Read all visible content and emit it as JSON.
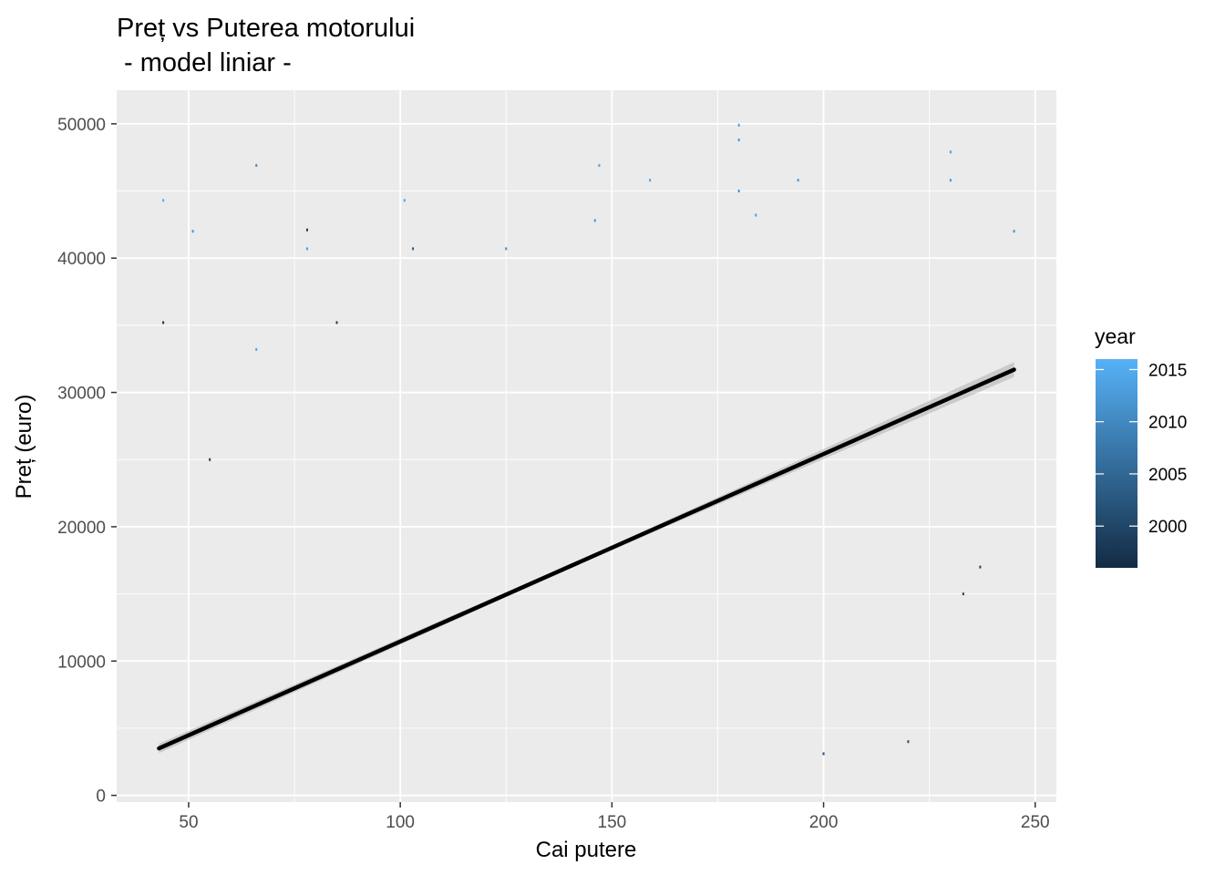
{
  "chart_data": {
    "type": "scatter",
    "title": "Preț vs Puterea motorului",
    "subtitle": " - model liniar -",
    "xlabel": "Cai putere",
    "ylabel": "Preț (euro)",
    "xlim": [
      33,
      255
    ],
    "ylim": [
      -500,
      52500
    ],
    "x_ticks": [
      50,
      100,
      150,
      200,
      250
    ],
    "y_ticks": [
      0,
      10000,
      20000,
      30000,
      40000,
      50000
    ],
    "grid": true,
    "legend": {
      "title": "year",
      "placement": "right",
      "type": "colorbar",
      "ticks": [
        2000,
        2005,
        2010,
        2015
      ],
      "range": [
        1996,
        2016
      ],
      "low_color": "#132b43",
      "high_color": "#56b1f7"
    },
    "series": [
      {
        "type": "line",
        "x": [
          43,
          245
        ],
        "y": [
          3500,
          31700
        ],
        "color": "#000000",
        "confidence_band": [
          {
            "x": 43,
            "lower": 3150,
            "upper": 3850
          },
          {
            "x": 144,
            "lower": 17450,
            "upper": 17750
          },
          {
            "x": 245,
            "lower": 31150,
            "upper": 32250
          }
        ]
      },
      {
        "type": "scatter",
        "points": [
          {
            "x": 44,
            "y": 44300,
            "year": 2015
          },
          {
            "x": 44,
            "y": 35200,
            "year": 1998
          },
          {
            "x": 51,
            "y": 42000,
            "year": 2012
          },
          {
            "x": 55,
            "y": 25000,
            "year": 1999
          },
          {
            "x": 66,
            "y": 46900,
            "year": 2010
          },
          {
            "x": 66,
            "y": 33200,
            "year": 2014
          },
          {
            "x": 78,
            "y": 42100,
            "year": 1999
          },
          {
            "x": 78,
            "y": 40700,
            "year": 2013
          },
          {
            "x": 85,
            "y": 35200,
            "year": 1999
          },
          {
            "x": 101,
            "y": 44300,
            "year": 2014
          },
          {
            "x": 103,
            "y": 40700,
            "year": 2003
          },
          {
            "x": 125,
            "y": 40700,
            "year": 2011
          },
          {
            "x": 146,
            "y": 42800,
            "year": 2012
          },
          {
            "x": 147,
            "y": 46900,
            "year": 2014
          },
          {
            "x": 159,
            "y": 45800,
            "year": 2014
          },
          {
            "x": 180,
            "y": 49900,
            "year": 2013
          },
          {
            "x": 180,
            "y": 48800,
            "year": 2012
          },
          {
            "x": 180,
            "y": 45000,
            "year": 2011
          },
          {
            "x": 184,
            "y": 43200,
            "year": 2013
          },
          {
            "x": 194,
            "y": 45800,
            "year": 2012
          },
          {
            "x": 230,
            "y": 47900,
            "year": 2013
          },
          {
            "x": 230,
            "y": 45800,
            "year": 2012
          },
          {
            "x": 245,
            "y": 42000,
            "year": 2011
          },
          {
            "x": 220,
            "y": 4000,
            "year": 2001
          },
          {
            "x": 200,
            "y": 3100,
            "year": 2002
          },
          {
            "x": 237,
            "y": 17000,
            "year": 1999
          },
          {
            "x": 233,
            "y": 15000,
            "year": 2000
          }
        ]
      }
    ]
  }
}
